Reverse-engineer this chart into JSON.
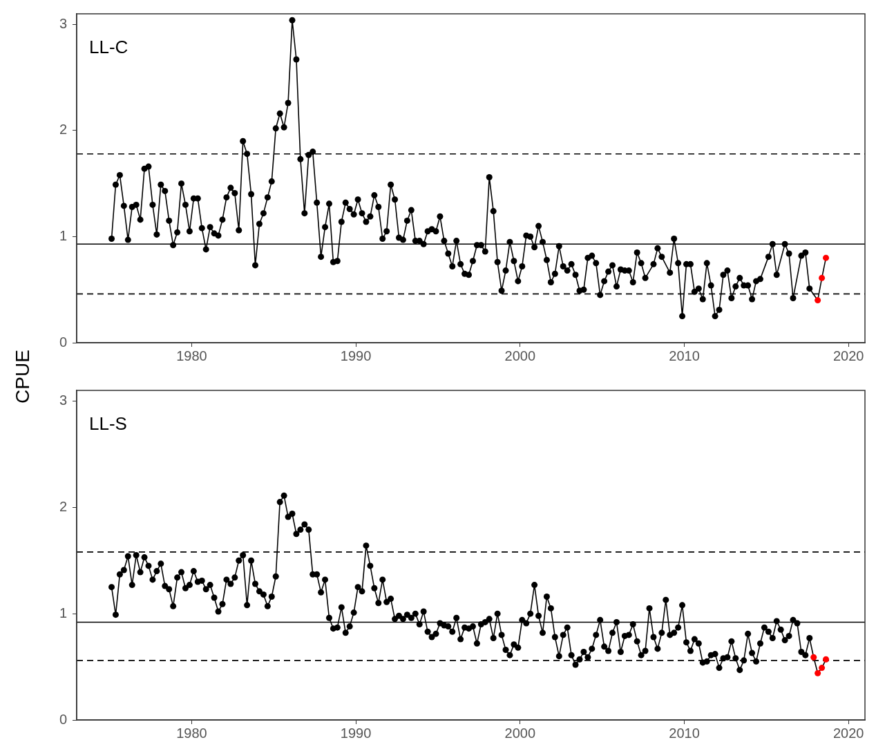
{
  "chart_data": [
    {
      "type": "line",
      "title": "LL-C",
      "ylabel": "CPUE",
      "xlim": [
        1973,
        2021
      ],
      "ylim": [
        0,
        3.1
      ],
      "xticks": [
        1980,
        1990,
        2000,
        2010,
        2020
      ],
      "yticks": [
        0,
        1,
        2,
        3
      ],
      "grid": false,
      "marker": "circle",
      "line_style": "solid",
      "series": [
        {
          "color": "#000000",
          "x": [
            1975.125,
            1975.375,
            1975.625,
            1975.875,
            1976.125,
            1976.375,
            1976.625,
            1976.875,
            1977.125,
            1977.375,
            1977.625,
            1977.875,
            1978.125,
            1978.375,
            1978.625,
            1978.875,
            1979.125,
            1979.375,
            1979.625,
            1979.875,
            1980.125,
            1980.375,
            1980.625,
            1980.875,
            1981.125,
            1981.375,
            1981.625,
            1981.875,
            1982.125,
            1982.375,
            1982.625,
            1982.875,
            1983.125,
            1983.375,
            1983.625,
            1983.875,
            1984.125,
            1984.375,
            1984.625,
            1984.875,
            1985.125,
            1985.375,
            1985.625,
            1985.875,
            1986.125,
            1986.375,
            1986.625,
            1986.875,
            1987.125,
            1987.375,
            1987.625,
            1987.875,
            1988.125,
            1988.375,
            1988.625,
            1988.875,
            1989.125,
            1989.375,
            1989.625,
            1989.875,
            1990.125,
            1990.375,
            1990.625,
            1990.875,
            1991.125,
            1991.375,
            1991.625,
            1991.875,
            1992.125,
            1992.375,
            1992.625,
            1992.875,
            1993.125,
            1993.375,
            1993.625,
            1993.875,
            1994.125,
            1994.375,
            1994.625,
            1994.875,
            1995.125,
            1995.375,
            1995.625,
            1995.875,
            1996.125,
            1996.375,
            1996.625,
            1996.875,
            1997.125,
            1997.375,
            1997.625,
            1997.875,
            1998.125,
            1998.375,
            1998.625,
            1998.875,
            1999.125,
            1999.375,
            1999.625,
            1999.875,
            2000.125,
            2000.375,
            2000.625,
            2000.875,
            2001.125,
            2001.375,
            2001.625,
            2001.875,
            2002.125,
            2002.375,
            2002.625,
            2002.875,
            2003.125,
            2003.375,
            2003.625,
            2003.875,
            2004.125,
            2004.375,
            2004.625,
            2004.875,
            2005.125,
            2005.375,
            2005.625,
            2005.875,
            2006.125,
            2006.375,
            2006.625,
            2006.875,
            2007.125,
            2007.375,
            2007.625,
            2008.125,
            2008.375,
            2008.625,
            2009.125,
            2009.375,
            2009.625,
            2009.875,
            2010.125,
            2010.375,
            2010.625,
            2010.875,
            2011.125,
            2011.375,
            2011.625,
            2011.875,
            2012.125,
            2012.375,
            2012.625,
            2012.875,
            2013.125,
            2013.375,
            2013.625,
            2013.875,
            2014.125,
            2014.375,
            2014.625,
            2015.125,
            2015.375,
            2015.625,
            2016.125,
            2016.375,
            2016.625,
            2017.125,
            2017.375,
            2017.625,
            2018.125,
            2018.375,
            2018.625
          ],
          "values": [
            0.98,
            1.49,
            1.58,
            1.29,
            0.97,
            1.28,
            1.3,
            1.16,
            1.64,
            1.66,
            1.3,
            1.02,
            1.49,
            1.43,
            1.15,
            0.92,
            1.04,
            1.5,
            1.3,
            1.05,
            1.36,
            1.36,
            1.08,
            0.88,
            1.09,
            1.03,
            1.01,
            1.16,
            1.37,
            1.46,
            1.41,
            1.06,
            1.9,
            1.78,
            1.4,
            0.73,
            1.12,
            1.22,
            1.37,
            1.52,
            2.02,
            2.16,
            2.03,
            2.26,
            3.04,
            2.67,
            1.73,
            1.22,
            1.77,
            1.8,
            1.32,
            0.81,
            1.09,
            1.31,
            0.76,
            0.77,
            1.14,
            1.32,
            1.26,
            1.21,
            1.35,
            1.22,
            1.14,
            1.19,
            1.39,
            1.28,
            0.98,
            1.05,
            1.49,
            1.35,
            0.99,
            0.97,
            1.15,
            1.25,
            0.96,
            0.96,
            0.93,
            1.05,
            1.07,
            1.05,
            1.19,
            0.96,
            0.84,
            0.72,
            0.96,
            0.74,
            0.65,
            0.64,
            0.77,
            0.92,
            0.92,
            0.86,
            1.56,
            1.24,
            0.76,
            0.49,
            0.68,
            0.95,
            0.77,
            0.58,
            0.72,
            1.01,
            1.0,
            0.9,
            1.1,
            0.95,
            0.78,
            0.57,
            0.65,
            0.91,
            0.72,
            0.68,
            0.74,
            0.64,
            0.49,
            0.5,
            0.8,
            0.82,
            0.75,
            0.45,
            0.58,
            0.67,
            0.73,
            0.53,
            0.69,
            0.68,
            0.68,
            0.57,
            0.85,
            0.75,
            0.61,
            0.74,
            0.89,
            0.81,
            0.66,
            0.98,
            0.75,
            0.25,
            0.74,
            0.74,
            0.48,
            0.51,
            0.41,
            0.75,
            0.54,
            0.25,
            0.31,
            0.64,
            0.68,
            0.42,
            0.53,
            0.61,
            0.54,
            0.54,
            0.41,
            0.58,
            0.6,
            0.81,
            0.93,
            0.64,
            0.93,
            0.84,
            0.42,
            0.82,
            0.85,
            0.51,
            0.4,
            0.61,
            0.8
          ],
          "colors": [
            "#000000",
            "#000000",
            "#000000",
            "#000000",
            "#000000",
            "#000000",
            "#000000",
            "#000000",
            "#000000",
            "#000000",
            "#000000",
            "#000000",
            "#000000",
            "#000000",
            "#000000",
            "#000000",
            "#000000",
            "#000000",
            "#000000",
            "#000000",
            "#000000",
            "#000000",
            "#000000",
            "#000000",
            "#000000",
            "#000000",
            "#000000",
            "#000000",
            "#000000",
            "#000000",
            "#000000",
            "#000000",
            "#000000",
            "#000000",
            "#000000",
            "#000000",
            "#000000",
            "#000000",
            "#000000",
            "#000000",
            "#000000",
            "#000000",
            "#000000",
            "#000000",
            "#000000",
            "#000000",
            "#000000",
            "#000000",
            "#000000",
            "#000000",
            "#000000",
            "#000000",
            "#000000",
            "#000000",
            "#000000",
            "#000000",
            "#000000",
            "#000000",
            "#000000",
            "#000000",
            "#000000",
            "#000000",
            "#000000",
            "#000000",
            "#000000",
            "#000000",
            "#000000",
            "#000000",
            "#000000",
            "#000000",
            "#000000",
            "#000000",
            "#000000",
            "#000000",
            "#000000",
            "#000000",
            "#000000",
            "#000000",
            "#000000",
            "#000000",
            "#000000",
            "#000000",
            "#000000",
            "#000000",
            "#000000",
            "#000000",
            "#000000",
            "#000000",
            "#000000",
            "#000000",
            "#000000",
            "#000000",
            "#000000",
            "#000000",
            "#000000",
            "#000000",
            "#000000",
            "#000000",
            "#000000",
            "#000000",
            "#000000",
            "#000000",
            "#000000",
            "#000000",
            "#000000",
            "#000000",
            "#000000",
            "#000000",
            "#000000",
            "#000000",
            "#000000",
            "#000000",
            "#000000",
            "#000000",
            "#000000",
            "#000000",
            "#000000",
            "#000000",
            "#000000",
            "#000000",
            "#000000",
            "#000000",
            "#000000",
            "#000000",
            "#000000",
            "#000000",
            "#000000",
            "#000000",
            "#000000",
            "#000000",
            "#000000",
            "#000000",
            "#000000",
            "#000000",
            "#000000",
            "#000000",
            "#000000",
            "#000000",
            "#000000",
            "#000000",
            "#000000",
            "#000000",
            "#000000",
            "#000000",
            "#000000",
            "#000000",
            "#000000",
            "#000000",
            "#000000",
            "#000000",
            "#000000",
            "#000000",
            "#000000",
            "#000000",
            "#000000",
            "#000000",
            "#000000",
            "#000000",
            "#000000",
            "#000000",
            "#000000",
            "#000000",
            "#000000",
            "#000000",
            "#000000",
            "#000000",
            "#ff0000",
            "#ff0000",
            "#ff0000"
          ]
        }
      ],
      "ref_lines": [
        {
          "axis": "y",
          "value": 0.93,
          "line_style": "solid",
          "color": "#000000"
        },
        {
          "axis": "y",
          "value": 1.78,
          "line_style": "dashed",
          "color": "#000000"
        },
        {
          "axis": "y",
          "value": 0.46,
          "line_style": "dashed",
          "color": "#000000"
        }
      ]
    },
    {
      "type": "line",
      "title": "LL-S",
      "xlim": [
        1973,
        2021
      ],
      "ylim": [
        0,
        3.1
      ],
      "xticks": [
        1980,
        1990,
        2000,
        2010,
        2020
      ],
      "yticks": [
        0,
        1,
        2,
        3
      ],
      "grid": false,
      "marker": "circle",
      "line_style": "solid",
      "series": [
        {
          "color": "#000000",
          "x": [
            1975.125,
            1975.375,
            1975.625,
            1975.875,
            1976.125,
            1976.375,
            1976.625,
            1976.875,
            1977.125,
            1977.375,
            1977.625,
            1977.875,
            1978.125,
            1978.375,
            1978.625,
            1978.875,
            1979.125,
            1979.375,
            1979.625,
            1979.875,
            1980.125,
            1980.375,
            1980.625,
            1980.875,
            1981.125,
            1981.375,
            1981.625,
            1981.875,
            1982.125,
            1982.375,
            1982.625,
            1982.875,
            1983.125,
            1983.375,
            1983.625,
            1983.875,
            1984.125,
            1984.375,
            1984.625,
            1984.875,
            1985.125,
            1985.375,
            1985.625,
            1985.875,
            1986.125,
            1986.375,
            1986.625,
            1986.875,
            1987.125,
            1987.375,
            1987.625,
            1987.875,
            1988.125,
            1988.375,
            1988.625,
            1988.875,
            1989.125,
            1989.375,
            1989.625,
            1989.875,
            1990.125,
            1990.375,
            1990.625,
            1990.875,
            1991.125,
            1991.375,
            1991.625,
            1991.875,
            1992.125,
            1992.375,
            1992.625,
            1992.875,
            1993.125,
            1993.375,
            1993.625,
            1993.875,
            1994.125,
            1994.375,
            1994.625,
            1994.875,
            1995.125,
            1995.375,
            1995.625,
            1995.875,
            1996.125,
            1996.375,
            1996.625,
            1996.875,
            1997.125,
            1997.375,
            1997.625,
            1997.875,
            1998.125,
            1998.375,
            1998.625,
            1998.875,
            1999.125,
            1999.375,
            1999.625,
            1999.875,
            2000.125,
            2000.375,
            2000.625,
            2000.875,
            2001.125,
            2001.375,
            2001.625,
            2001.875,
            2002.125,
            2002.375,
            2002.625,
            2002.875,
            2003.125,
            2003.375,
            2003.625,
            2003.875,
            2004.125,
            2004.375,
            2004.625,
            2004.875,
            2005.125,
            2005.375,
            2005.625,
            2005.875,
            2006.125,
            2006.375,
            2006.625,
            2006.875,
            2007.125,
            2007.375,
            2007.625,
            2007.875,
            2008.125,
            2008.375,
            2008.625,
            2008.875,
            2009.125,
            2009.375,
            2009.625,
            2009.875,
            2010.125,
            2010.375,
            2010.625,
            2010.875,
            2011.125,
            2011.375,
            2011.625,
            2011.875,
            2012.125,
            2012.375,
            2012.625,
            2012.875,
            2013.125,
            2013.375,
            2013.625,
            2013.875,
            2014.125,
            2014.375,
            2014.625,
            2014.875,
            2015.125,
            2015.375,
            2015.625,
            2015.875,
            2016.125,
            2016.375,
            2016.625,
            2016.875,
            2017.125,
            2017.375,
            2017.625,
            2017.875,
            2018.125,
            2018.375,
            2018.625
          ],
          "values": [
            1.25,
            0.99,
            1.37,
            1.41,
            1.54,
            1.27,
            1.55,
            1.39,
            1.53,
            1.45,
            1.32,
            1.4,
            1.47,
            1.26,
            1.23,
            1.07,
            1.34,
            1.39,
            1.24,
            1.27,
            1.4,
            1.3,
            1.31,
            1.23,
            1.27,
            1.15,
            1.02,
            1.09,
            1.32,
            1.28,
            1.34,
            1.5,
            1.55,
            1.08,
            1.5,
            1.28,
            1.21,
            1.18,
            1.07,
            1.16,
            1.35,
            2.05,
            2.11,
            1.91,
            1.94,
            1.75,
            1.79,
            1.84,
            1.79,
            1.37,
            1.37,
            1.2,
            1.32,
            0.96,
            0.86,
            0.87,
            1.06,
            0.82,
            0.88,
            1.01,
            1.25,
            1.21,
            1.64,
            1.45,
            1.24,
            1.1,
            1.32,
            1.11,
            1.14,
            0.95,
            0.98,
            0.95,
            0.99,
            0.96,
            1.0,
            0.9,
            1.02,
            0.83,
            0.78,
            0.81,
            0.91,
            0.89,
            0.88,
            0.83,
            0.96,
            0.76,
            0.87,
            0.86,
            0.88,
            0.72,
            0.9,
            0.92,
            0.95,
            0.77,
            1.0,
            0.8,
            0.66,
            0.61,
            0.71,
            0.68,
            0.94,
            0.91,
            1.0,
            1.27,
            0.98,
            0.82,
            1.16,
            1.05,
            0.78,
            0.6,
            0.8,
            0.87,
            0.61,
            0.52,
            0.57,
            0.64,
            0.59,
            0.67,
            0.8,
            0.94,
            0.69,
            0.65,
            0.82,
            0.92,
            0.64,
            0.79,
            0.8,
            0.9,
            0.74,
            0.61,
            0.65,
            1.05,
            0.78,
            0.67,
            0.82,
            1.13,
            0.8,
            0.82,
            0.87,
            1.08,
            0.73,
            0.65,
            0.76,
            0.72,
            0.54,
            0.55,
            0.61,
            0.62,
            0.49,
            0.58,
            0.59,
            0.74,
            0.58,
            0.47,
            0.56,
            0.81,
            0.63,
            0.55,
            0.72,
            0.87,
            0.83,
            0.77,
            0.93,
            0.85,
            0.75,
            0.79,
            0.94,
            0.91,
            0.64,
            0.61,
            0.77,
            0.59,
            0.44,
            0.49,
            0.57
          ],
          "colors": [
            "#000000",
            "#000000",
            "#000000",
            "#000000",
            "#000000",
            "#000000",
            "#000000",
            "#000000",
            "#000000",
            "#000000",
            "#000000",
            "#000000",
            "#000000",
            "#000000",
            "#000000",
            "#000000",
            "#000000",
            "#000000",
            "#000000",
            "#000000",
            "#000000",
            "#000000",
            "#000000",
            "#000000",
            "#000000",
            "#000000",
            "#000000",
            "#000000",
            "#000000",
            "#000000",
            "#000000",
            "#000000",
            "#000000",
            "#000000",
            "#000000",
            "#000000",
            "#000000",
            "#000000",
            "#000000",
            "#000000",
            "#000000",
            "#000000",
            "#000000",
            "#000000",
            "#000000",
            "#000000",
            "#000000",
            "#000000",
            "#000000",
            "#000000",
            "#000000",
            "#000000",
            "#000000",
            "#000000",
            "#000000",
            "#000000",
            "#000000",
            "#000000",
            "#000000",
            "#000000",
            "#000000",
            "#000000",
            "#000000",
            "#000000",
            "#000000",
            "#000000",
            "#000000",
            "#000000",
            "#000000",
            "#000000",
            "#000000",
            "#000000",
            "#000000",
            "#000000",
            "#000000",
            "#000000",
            "#000000",
            "#000000",
            "#000000",
            "#000000",
            "#000000",
            "#000000",
            "#000000",
            "#000000",
            "#000000",
            "#000000",
            "#000000",
            "#000000",
            "#000000",
            "#000000",
            "#000000",
            "#000000",
            "#000000",
            "#000000",
            "#000000",
            "#000000",
            "#000000",
            "#000000",
            "#000000",
            "#000000",
            "#000000",
            "#000000",
            "#000000",
            "#000000",
            "#000000",
            "#000000",
            "#000000",
            "#000000",
            "#000000",
            "#000000",
            "#000000",
            "#000000",
            "#000000",
            "#000000",
            "#000000",
            "#000000",
            "#000000",
            "#000000",
            "#000000",
            "#000000",
            "#000000",
            "#000000",
            "#000000",
            "#000000",
            "#000000",
            "#000000",
            "#000000",
            "#000000",
            "#000000",
            "#000000",
            "#000000",
            "#000000",
            "#000000",
            "#000000",
            "#000000",
            "#000000",
            "#000000",
            "#000000",
            "#000000",
            "#000000",
            "#000000",
            "#000000",
            "#000000",
            "#000000",
            "#000000",
            "#000000",
            "#000000",
            "#000000",
            "#000000",
            "#000000",
            "#000000",
            "#000000",
            "#000000",
            "#000000",
            "#000000",
            "#000000",
            "#000000",
            "#000000",
            "#000000",
            "#000000",
            "#000000",
            "#000000",
            "#000000",
            "#000000",
            "#000000",
            "#000000",
            "#000000",
            "#000000",
            "#000000",
            "#000000",
            "#000000",
            "#ff0000",
            "#ff0000",
            "#ff0000",
            "#ff0000"
          ]
        }
      ],
      "ref_lines": [
        {
          "axis": "y",
          "value": 0.92,
          "line_style": "solid",
          "color": "#000000"
        },
        {
          "axis": "y",
          "value": 1.58,
          "line_style": "dashed",
          "color": "#000000"
        },
        {
          "axis": "y",
          "value": 0.56,
          "line_style": "dashed",
          "color": "#000000"
        }
      ]
    }
  ]
}
